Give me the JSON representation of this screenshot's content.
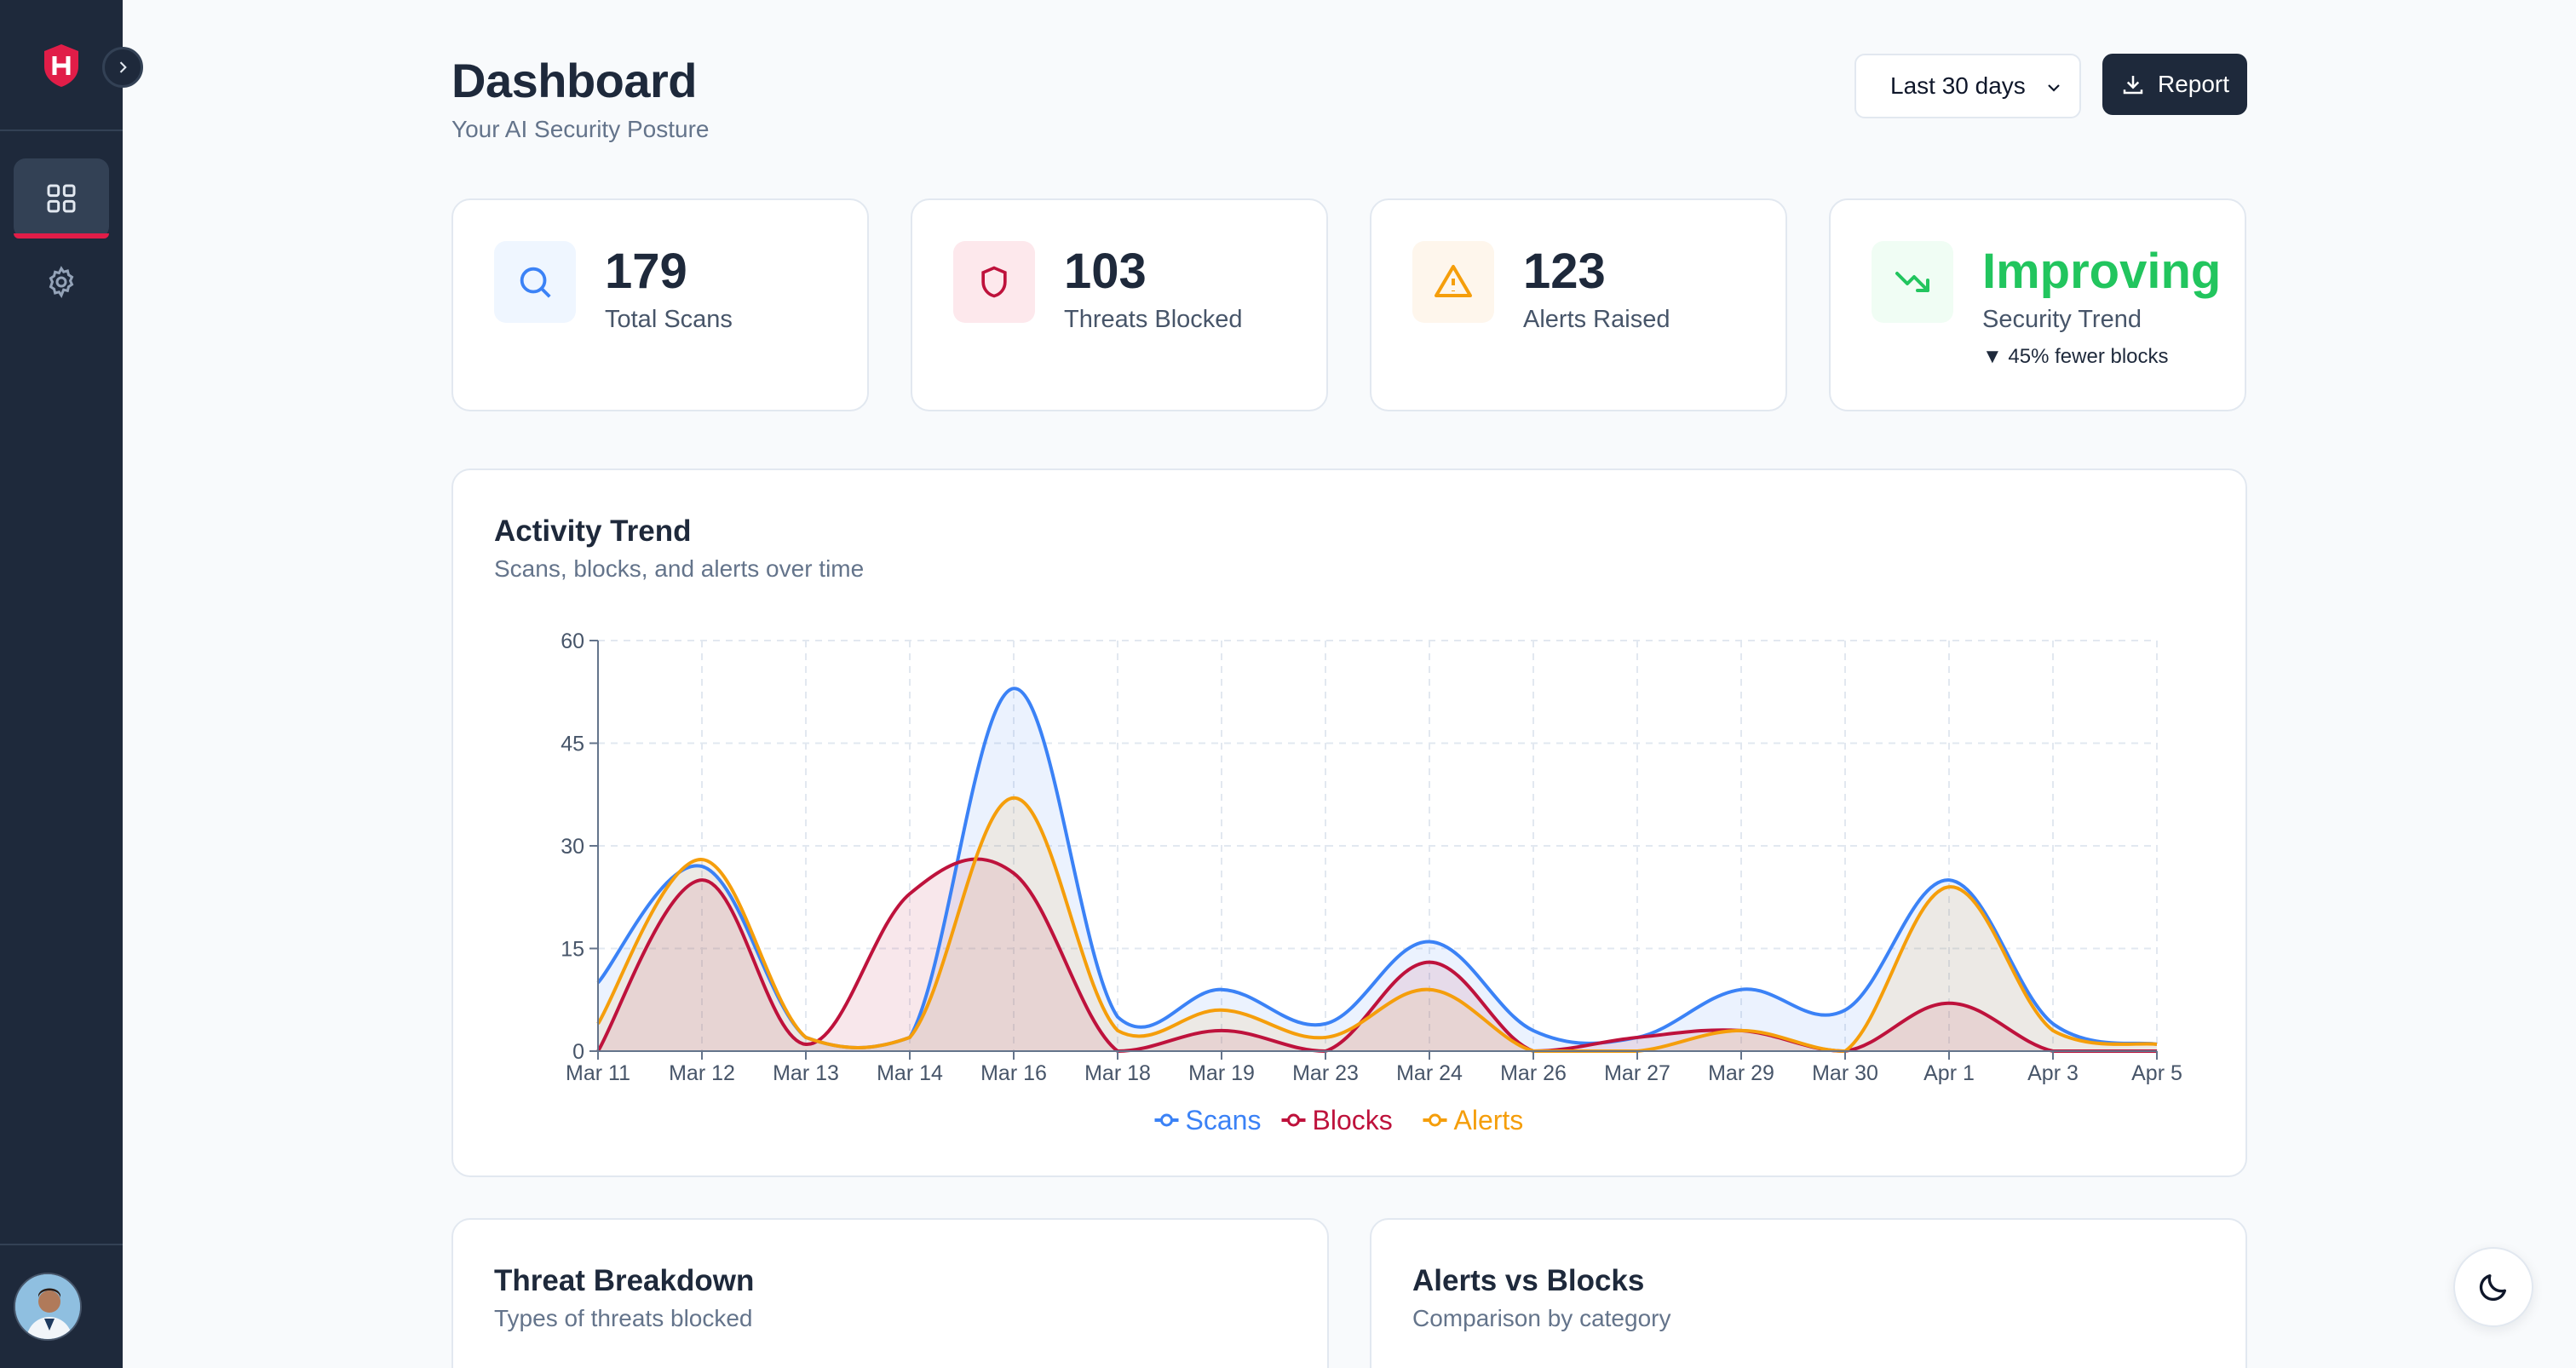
{
  "header": {
    "title": "Dashboard",
    "subtitle": "Your AI Security Posture",
    "range_select": "Last 30 days",
    "report_label": "Report"
  },
  "sidebar": {
    "items": [
      {
        "name": "dashboard",
        "icon": "grid-icon",
        "active": true
      },
      {
        "name": "settings",
        "icon": "gear-icon",
        "active": false
      }
    ],
    "accent": "#e11d48"
  },
  "stats": [
    {
      "value": "179",
      "label": "Total Scans",
      "icon": "search-icon",
      "color": "#3b82f6",
      "bg": "#eff6ff"
    },
    {
      "value": "103",
      "label": "Threats Blocked",
      "icon": "shield-icon",
      "color": "#be123c",
      "bg": "#fde8ec"
    },
    {
      "value": "123",
      "label": "Alerts Raised",
      "icon": "warning-icon",
      "color": "#f59e0b",
      "bg": "#fef6ec"
    },
    {
      "value": "Improving",
      "label": "Security Trend",
      "sub": "▼ 45% fewer blocks",
      "icon": "trending-down-icon",
      "color": "#22c55e",
      "bg": "#f0fdf4"
    }
  ],
  "activity": {
    "title": "Activity Trend",
    "subtitle": "Scans, blocks, and alerts over time"
  },
  "chart_data": {
    "type": "area",
    "categories": [
      "Mar 11",
      "Mar 12",
      "Mar 13",
      "Mar 14",
      "Mar 16",
      "Mar 18",
      "Mar 19",
      "Mar 23",
      "Mar 24",
      "Mar 26",
      "Mar 27",
      "Mar 29",
      "Mar 30",
      "Apr 1",
      "Apr 3",
      "Apr 5"
    ],
    "yticks": [
      "0",
      "15",
      "30",
      "45",
      "60"
    ],
    "ylim": [
      0,
      60
    ],
    "grid": true,
    "legend_position": "bottom",
    "series": [
      {
        "name": "Scans",
        "color": "#3b82f6",
        "values": [
          10,
          27,
          2,
          2,
          53,
          5,
          9,
          4,
          16,
          3,
          2,
          9,
          6,
          25,
          4,
          1
        ]
      },
      {
        "name": "Blocks",
        "color": "#be123c",
        "values": [
          0,
          25,
          1,
          23,
          26,
          0,
          3,
          0,
          13,
          0,
          2,
          3,
          0,
          7,
          0,
          0
        ]
      },
      {
        "name": "Alerts",
        "color": "#f59e0b",
        "values": [
          4,
          28,
          2,
          2,
          37,
          3,
          6,
          2,
          9,
          0,
          0,
          3,
          0,
          24,
          3,
          1
        ]
      }
    ]
  },
  "bottom_cards": [
    {
      "title": "Threat Breakdown",
      "subtitle": "Types of threats blocked"
    },
    {
      "title": "Alerts vs Blocks",
      "subtitle": "Comparison by category"
    }
  ]
}
